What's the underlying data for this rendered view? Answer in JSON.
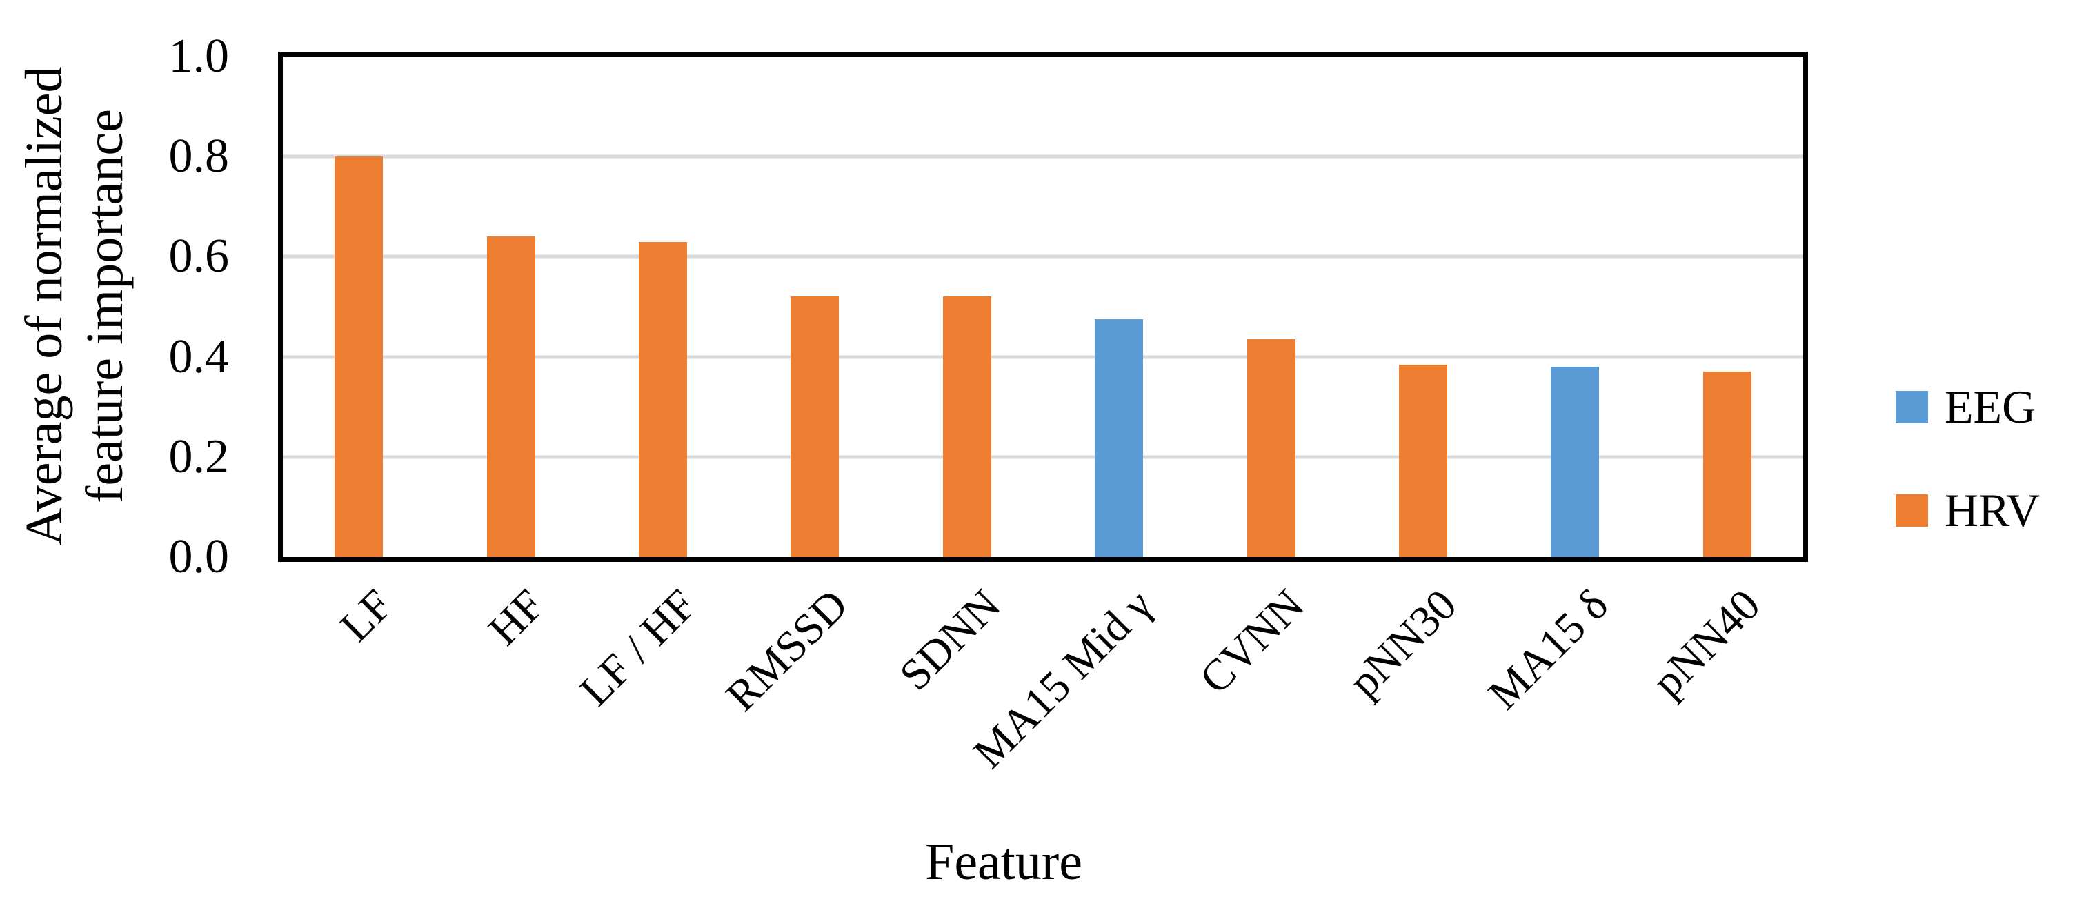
{
  "chart_data": {
    "type": "bar",
    "title": "",
    "xlabel": "Feature",
    "ylabel": "Average of normalized feature importance",
    "ylabel_line1": "Average of normalized",
    "ylabel_line2": "feature importance",
    "categories": [
      "LF",
      "HF",
      "LF / HF",
      "RMSSD",
      "SDNN",
      "MA15 Mid γ",
      "CVNN",
      "pNN30",
      "MA15 δ",
      "pNN40"
    ],
    "values": [
      0.8,
      0.64,
      0.63,
      0.52,
      0.52,
      0.475,
      0.435,
      0.385,
      0.38,
      0.37
    ],
    "series_by_bar": [
      "HRV",
      "HRV",
      "HRV",
      "HRV",
      "HRV",
      "EEG",
      "HRV",
      "HRV",
      "EEG",
      "HRV"
    ],
    "ylim": [
      0.0,
      1.0
    ],
    "yticks": [
      0.0,
      0.2,
      0.4,
      0.6,
      0.8,
      1.0
    ],
    "ytick_labels": [
      "0.0",
      "0.2",
      "0.4",
      "0.6",
      "0.8",
      "1.0"
    ],
    "grid": "horizontal",
    "legend": {
      "position": "right",
      "entries": [
        {
          "label": "EEG",
          "color": "#5B9BD5"
        },
        {
          "label": "HRV",
          "color": "#ED7D31"
        }
      ]
    }
  },
  "colors": {
    "background": "#FFFFFF",
    "frame": "#000000",
    "gridline": "#D9D9D9",
    "text": "#000000",
    "eeg_blue": "#5B9BD5",
    "hrv_orange": "#ED7D31"
  }
}
